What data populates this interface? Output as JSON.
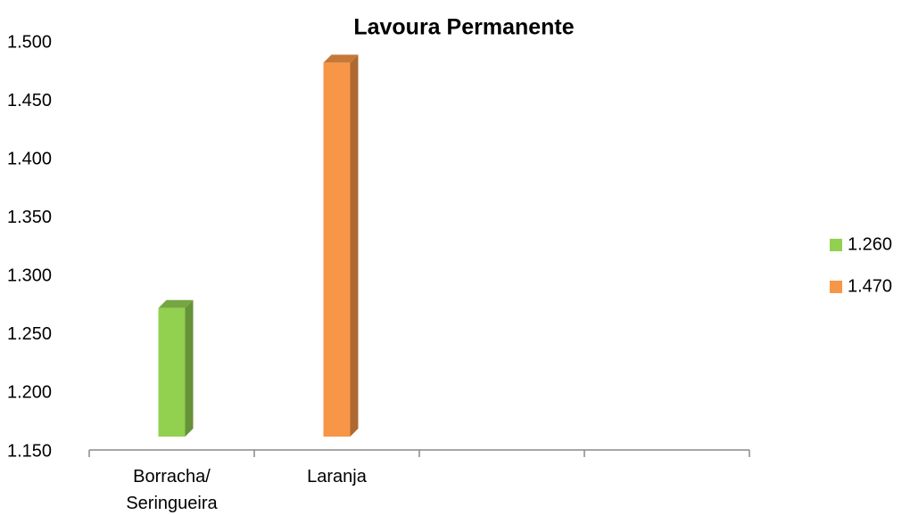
{
  "chart_data": {
    "type": "bar",
    "title": "Lavoura Permanente",
    "categories": [
      "Borracha/ Seringueira",
      "Laranja",
      null,
      null
    ],
    "series": [
      {
        "name": "1.260",
        "color": "#92d050",
        "values": [
          1260,
          null,
          null,
          null
        ]
      },
      {
        "name": "1.470",
        "color": "#f79646",
        "values": [
          null,
          1470,
          null,
          null
        ]
      }
    ],
    "ylim": [
      1150,
      1500
    ],
    "yticks": [
      {
        "value": 1150,
        "label": "1.150"
      },
      {
        "value": 1200,
        "label": "1.200"
      },
      {
        "value": 1250,
        "label": "1.250"
      },
      {
        "value": 1300,
        "label": "1.300"
      },
      {
        "value": 1350,
        "label": "1.350"
      },
      {
        "value": 1400,
        "label": "1.400"
      },
      {
        "value": 1450,
        "label": "1.450"
      },
      {
        "value": 1500,
        "label": "1.500"
      }
    ],
    "grid": false,
    "legend": "right"
  }
}
